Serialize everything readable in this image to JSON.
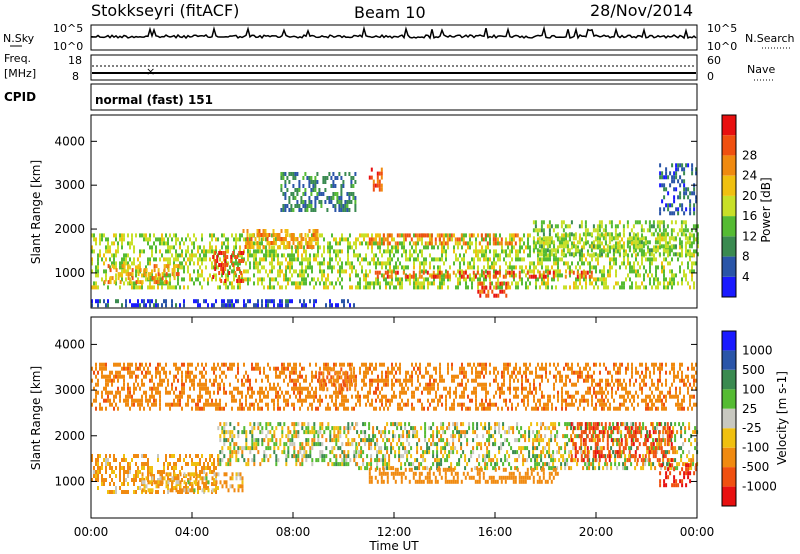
{
  "header": {
    "station": "Stokkseyri (fitACF)",
    "beam": "Beam 10",
    "date": "28/Nov/2014"
  },
  "top_panels": {
    "nsky_label": "N.Sky",
    "nsearch_label": "N.Search",
    "nsky_ticks": [
      "10^5",
      "10^0"
    ],
    "nsearch_ticks": [
      "10^5",
      "10^0"
    ],
    "freq_label_1": "Freq.",
    "freq_label_2": "[MHz]",
    "freq_ticks": [
      "18",
      "8"
    ],
    "nave_label": "Nave",
    "nave_ticks": [
      "60",
      "0"
    ],
    "cpid_label": "CPID",
    "cpid_text": "normal (fast) 151"
  },
  "colors": {
    "power_scale": [
      "#1a1aff",
      "#2a55a8",
      "#3a8a50",
      "#55bb33",
      "#c8e028",
      "#f0c010",
      "#f08a10",
      "#f05010",
      "#e81010"
    ],
    "velocity_scale": [
      "#1a1aff",
      "#2a55a8",
      "#3a8a50",
      "#55bb33",
      "#c8c8c0",
      "#f0c010",
      "#f08a10",
      "#f05010",
      "#e81010"
    ],
    "ground_scatter": "#c8c8c0"
  },
  "chart_data": [
    {
      "type": "heatmap",
      "name": "power",
      "ylabel": "Slant Range [km]",
      "xlabel": "",
      "ylim": [
        200,
        4600
      ],
      "xlim": [
        0,
        24
      ],
      "yticks": [
        "1000",
        "2000",
        "3000",
        "4000"
      ],
      "colorbar": {
        "label": "Power [dB]",
        "ticks": [
          "4",
          "8",
          "12",
          "16",
          "20",
          "24",
          "28"
        ],
        "range": [
          0,
          32
        ]
      },
      "regions": [
        {
          "t": [
            0.0,
            24.0
          ],
          "r": [
            700,
            1900
          ],
          "level": 15
        },
        {
          "t": [
            0.5,
            3.5
          ],
          "r": [
            800,
            1200
          ],
          "level": 22
        },
        {
          "t": [
            4.8,
            6.0
          ],
          "r": [
            800,
            1500
          ],
          "level": 28
        },
        {
          "t": [
            6.0,
            9.0
          ],
          "r": [
            1600,
            2000
          ],
          "level": 22
        },
        {
          "t": [
            7.5,
            10.5
          ],
          "r": [
            2400,
            3300
          ],
          "level": 8
        },
        {
          "t": [
            11.0,
            11.5
          ],
          "r": [
            2900,
            3400
          ],
          "level": 27
        },
        {
          "t": [
            11.0,
            17.0
          ],
          "r": [
            1700,
            1900
          ],
          "level": 24
        },
        {
          "t": [
            11.0,
            20.0
          ],
          "r": [
            900,
            1050
          ],
          "level": 27
        },
        {
          "t": [
            15.3,
            16.5
          ],
          "r": [
            500,
            800
          ],
          "level": 28
        },
        {
          "t": [
            17.5,
            24.0
          ],
          "r": [
            1400,
            2200
          ],
          "level": 14
        },
        {
          "t": [
            22.5,
            24.0
          ],
          "r": [
            2400,
            3500
          ],
          "level": 6
        },
        {
          "t": [
            0.0,
            10.5
          ],
          "r": [
            250,
            400
          ],
          "level": 4
        }
      ]
    },
    {
      "type": "heatmap",
      "name": "velocity",
      "ylabel": "Slant Range [km]",
      "xlabel": "Time UT",
      "ylim": [
        200,
        4600
      ],
      "xlim": [
        0,
        24
      ],
      "yticks": [
        "1000",
        "2000",
        "3000",
        "4000"
      ],
      "xticks": [
        "00:00",
        "04:00",
        "08:00",
        "12:00",
        "16:00",
        "20:00",
        "00:00"
      ],
      "colorbar": {
        "label": "Velocity [m s-1]",
        "ticks": [
          "1000",
          "500",
          "100",
          "25",
          "-25",
          "-100",
          "-500",
          "-1000"
        ],
        "range": [
          -1200,
          1200
        ]
      },
      "regions": [
        {
          "t": [
            0.0,
            5.0
          ],
          "r": [
            800,
            1600
          ],
          "level": -150
        },
        {
          "t": [
            2.0,
            6.0
          ],
          "r": [
            800,
            1200
          ],
          "level": -100
        },
        {
          "t": [
            5.0,
            10.5
          ],
          "r": [
            1400,
            2300
          ],
          "level": 0
        },
        {
          "t": [
            9.0,
            10.5
          ],
          "r": [
            3000,
            3500
          ],
          "level": -500
        },
        {
          "t": [
            10.5,
            24.0
          ],
          "r": [
            1300,
            2300
          ],
          "level": 0
        },
        {
          "t": [
            11.0,
            18.5
          ],
          "r": [
            1000,
            1300
          ],
          "level": -300
        },
        {
          "t": [
            19.0,
            23.0
          ],
          "r": [
            1500,
            2300
          ],
          "level": -900
        },
        {
          "t": [
            22.5,
            24.0
          ],
          "r": [
            900,
            1400
          ],
          "level": -1000
        },
        {
          "t": [
            0.0,
            24.0
          ],
          "r": [
            2600,
            3600
          ],
          "level": -400
        }
      ]
    }
  ]
}
